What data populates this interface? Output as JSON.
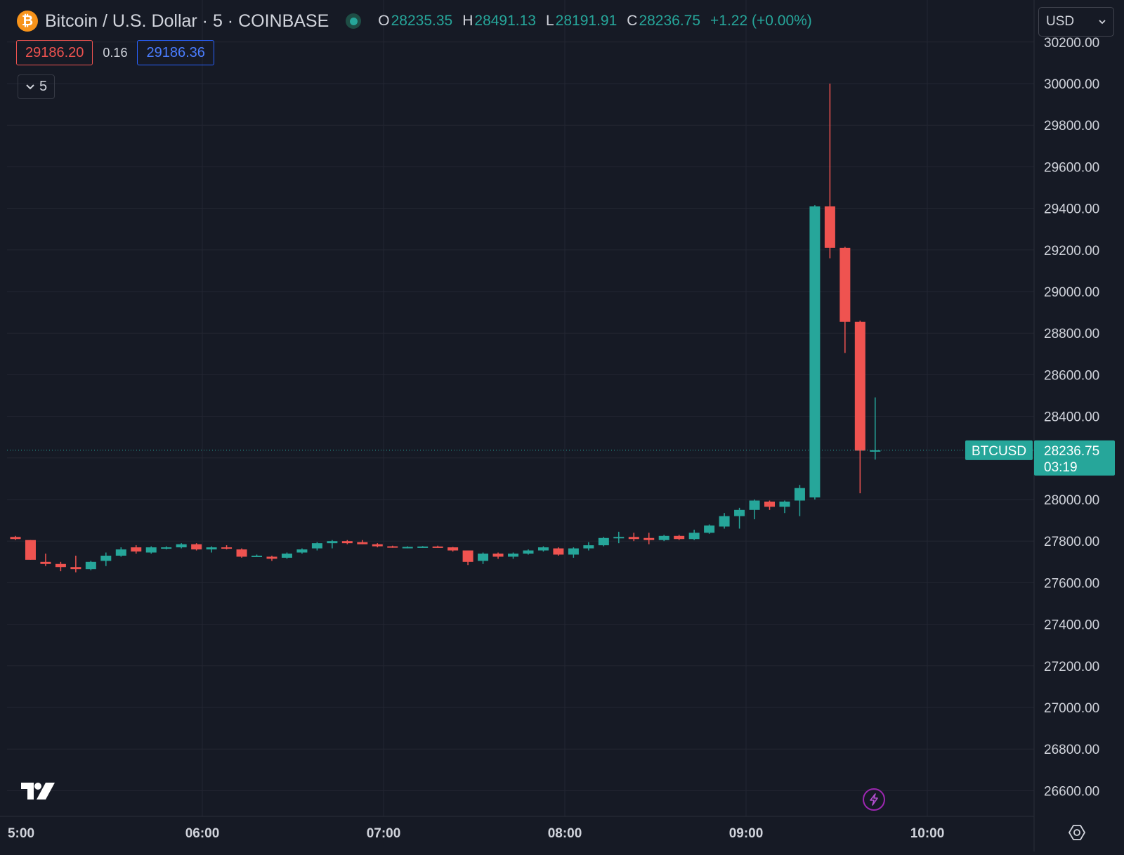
{
  "header": {
    "coin_symbol": "₿",
    "title": "Bitcoin / U.S. Dollar · 5 · COINBASE",
    "ohlc": [
      {
        "key": "O",
        "value": "28235.35"
      },
      {
        "key": "H",
        "value": "28491.13"
      },
      {
        "key": "L",
        "value": "28191.91"
      },
      {
        "key": "C",
        "value": "28236.75"
      }
    ],
    "change": "+1.22 (+0.00%)"
  },
  "quotes": {
    "sell": "29186.20",
    "spread": "0.16",
    "buy": "29186.36"
  },
  "interval_label": "5",
  "currency_label": "USD",
  "price_tag": {
    "symbol": "BTCUSD",
    "price": "28236.75",
    "countdown": "03:19"
  },
  "colors": {
    "up": "#26a69a",
    "down": "#ef5350",
    "background": "#161a25",
    "grid": "#232632",
    "accent_purple": "#9c27b0"
  },
  "icons": {
    "live": "live-status-dot",
    "interval_toggle": "chevron-down-icon",
    "currency_toggle": "chevron-down-icon",
    "logo": "tradingview-logo",
    "flash": "lightning-icon",
    "settings": "gear-icon"
  },
  "chart_data": {
    "type": "candlestick",
    "x_tick_labels": [
      "5:00",
      "06:00",
      "07:00",
      "08:00",
      "09:00",
      "10:00"
    ],
    "y_tick_labels": [
      "30200.00",
      "30000.00",
      "29800.00",
      "29600.00",
      "29400.00",
      "29200.00",
      "29000.00",
      "28800.00",
      "28600.00",
      "28400.00",
      "28200.00",
      "28000.00",
      "27800.00",
      "27600.00",
      "27400.00",
      "27200.00",
      "27000.00",
      "26800.00",
      "26600.00"
    ],
    "ylim": [
      26520,
      30240
    ],
    "last_price": 28236.75,
    "grid": true,
    "candles": [
      {
        "t": "05:00",
        "o": 27820,
        "h": 27825,
        "l": 27805,
        "c": 27810
      },
      {
        "t": "05:05",
        "o": 27805,
        "h": 27805,
        "l": 27710,
        "c": 27710
      },
      {
        "t": "05:10",
        "o": 27700,
        "h": 27740,
        "l": 27680,
        "c": 27690
      },
      {
        "t": "05:15",
        "o": 27690,
        "h": 27700,
        "l": 27655,
        "c": 27675
      },
      {
        "t": "05:20",
        "o": 27675,
        "h": 27730,
        "l": 27650,
        "c": 27665
      },
      {
        "t": "05:25",
        "o": 27665,
        "h": 27705,
        "l": 27660,
        "c": 27700
      },
      {
        "t": "05:30",
        "o": 27705,
        "h": 27745,
        "l": 27680,
        "c": 27730
      },
      {
        "t": "05:35",
        "o": 27730,
        "h": 27770,
        "l": 27725,
        "c": 27760
      },
      {
        "t": "05:40",
        "o": 27770,
        "h": 27780,
        "l": 27740,
        "c": 27750
      },
      {
        "t": "05:45",
        "o": 27745,
        "h": 27775,
        "l": 27740,
        "c": 27770
      },
      {
        "t": "05:50",
        "o": 27765,
        "h": 27775,
        "l": 27760,
        "c": 27770
      },
      {
        "t": "05:55",
        "o": 27770,
        "h": 27790,
        "l": 27765,
        "c": 27785
      },
      {
        "t": "06:00",
        "o": 27785,
        "h": 27790,
        "l": 27755,
        "c": 27760
      },
      {
        "t": "06:05",
        "o": 27760,
        "h": 27775,
        "l": 27745,
        "c": 27770
      },
      {
        "t": "06:10",
        "o": 27770,
        "h": 27780,
        "l": 27760,
        "c": 27765
      },
      {
        "t": "06:15",
        "o": 27760,
        "h": 27765,
        "l": 27720,
        "c": 27725
      },
      {
        "t": "06:20",
        "o": 27730,
        "h": 27735,
        "l": 27725,
        "c": 27730
      },
      {
        "t": "06:25",
        "o": 27725,
        "h": 27730,
        "l": 27705,
        "c": 27715
      },
      {
        "t": "06:30",
        "o": 27720,
        "h": 27745,
        "l": 27715,
        "c": 27740
      },
      {
        "t": "06:35",
        "o": 27745,
        "h": 27765,
        "l": 27740,
        "c": 27760
      },
      {
        "t": "06:40",
        "o": 27765,
        "h": 27795,
        "l": 27755,
        "c": 27790
      },
      {
        "t": "06:45",
        "o": 27790,
        "h": 27805,
        "l": 27765,
        "c": 27800
      },
      {
        "t": "06:50",
        "o": 27800,
        "h": 27805,
        "l": 27785,
        "c": 27790
      },
      {
        "t": "06:55",
        "o": 27795,
        "h": 27805,
        "l": 27785,
        "c": 27785
      },
      {
        "t": "07:00",
        "o": 27785,
        "h": 27790,
        "l": 27770,
        "c": 27775
      },
      {
        "t": "07:05",
        "o": 27775,
        "h": 27778,
        "l": 27768,
        "c": 27770
      },
      {
        "t": "07:10",
        "o": 27770,
        "h": 27775,
        "l": 27765,
        "c": 27772
      },
      {
        "t": "07:15",
        "o": 27772,
        "h": 27776,
        "l": 27768,
        "c": 27774
      },
      {
        "t": "07:20",
        "o": 27774,
        "h": 27778,
        "l": 27768,
        "c": 27772
      },
      {
        "t": "07:25",
        "o": 27770,
        "h": 27772,
        "l": 27750,
        "c": 27755
      },
      {
        "t": "07:30",
        "o": 27755,
        "h": 27755,
        "l": 27685,
        "c": 27700
      },
      {
        "t": "07:35",
        "o": 27705,
        "h": 27745,
        "l": 27690,
        "c": 27740
      },
      {
        "t": "07:40",
        "o": 27740,
        "h": 27745,
        "l": 27715,
        "c": 27725
      },
      {
        "t": "07:45",
        "o": 27725,
        "h": 27745,
        "l": 27715,
        "c": 27740
      },
      {
        "t": "07:50",
        "o": 27740,
        "h": 27760,
        "l": 27735,
        "c": 27755
      },
      {
        "t": "07:55",
        "o": 27755,
        "h": 27775,
        "l": 27750,
        "c": 27770
      },
      {
        "t": "08:00",
        "o": 27765,
        "h": 27770,
        "l": 27730,
        "c": 27735
      },
      {
        "t": "08:05",
        "o": 27735,
        "h": 27770,
        "l": 27720,
        "c": 27765
      },
      {
        "t": "08:10",
        "o": 27765,
        "h": 27795,
        "l": 27755,
        "c": 27780
      },
      {
        "t": "08:15",
        "o": 27780,
        "h": 27820,
        "l": 27775,
        "c": 27815
      },
      {
        "t": "08:20",
        "o": 27815,
        "h": 27845,
        "l": 27790,
        "c": 27820
      },
      {
        "t": "08:25",
        "o": 27820,
        "h": 27840,
        "l": 27800,
        "c": 27810
      },
      {
        "t": "08:30",
        "o": 27815,
        "h": 27840,
        "l": 27785,
        "c": 27805
      },
      {
        "t": "08:35",
        "o": 27805,
        "h": 27830,
        "l": 27800,
        "c": 27825
      },
      {
        "t": "08:40",
        "o": 27825,
        "h": 27830,
        "l": 27805,
        "c": 27810
      },
      {
        "t": "08:45",
        "o": 27810,
        "h": 27855,
        "l": 27805,
        "c": 27840
      },
      {
        "t": "08:50",
        "o": 27840,
        "h": 27880,
        "l": 27835,
        "c": 27875
      },
      {
        "t": "08:55",
        "o": 27870,
        "h": 27935,
        "l": 27860,
        "c": 27920
      },
      {
        "t": "09:00",
        "o": 27920,
        "h": 27960,
        "l": 27860,
        "c": 27950
      },
      {
        "t": "09:05",
        "o": 27950,
        "h": 28000,
        "l": 27905,
        "c": 27995
      },
      {
        "t": "09:10",
        "o": 27990,
        "h": 27995,
        "l": 27950,
        "c": 27965
      },
      {
        "t": "09:15",
        "o": 27965,
        "h": 27995,
        "l": 27935,
        "c": 27990
      },
      {
        "t": "09:20",
        "o": 27995,
        "h": 28070,
        "l": 27920,
        "c": 28055
      },
      {
        "t": "09:25",
        "o": 28010,
        "h": 29415,
        "l": 28000,
        "c": 29410
      },
      {
        "t": "09:30",
        "o": 29410,
        "h": 30000,
        "l": 29160,
        "c": 29210
      },
      {
        "t": "09:35",
        "o": 29210,
        "h": 29215,
        "l": 28705,
        "c": 28855
      },
      {
        "t": "09:40",
        "o": 28855,
        "h": 28860,
        "l": 28030,
        "c": 28235
      },
      {
        "t": "09:45",
        "o": 28235.35,
        "h": 28491.13,
        "l": 28191.91,
        "c": 28236.75
      }
    ]
  }
}
